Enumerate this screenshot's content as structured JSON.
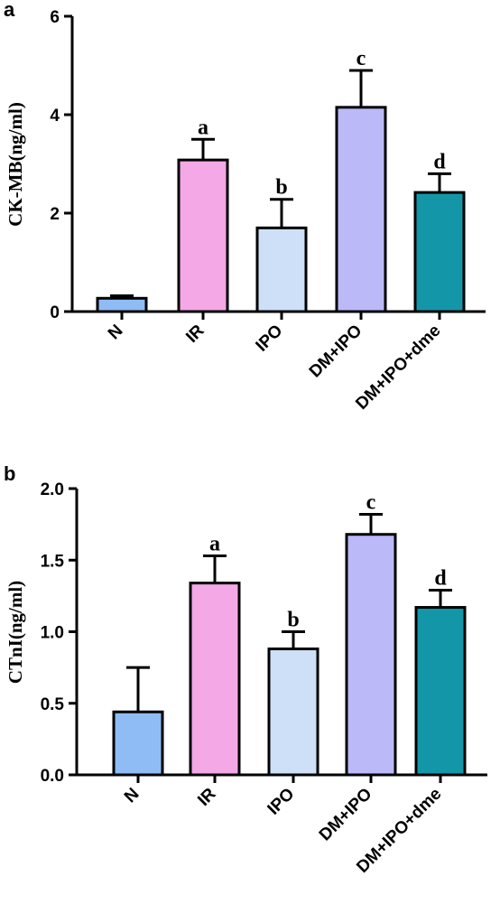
{
  "chart_data": [
    {
      "type": "bar",
      "panel_label": "a",
      "ylabel": "CK-MB(ng/ml)",
      "ylim": [
        0,
        6
      ],
      "yticks": [
        "0",
        "2",
        "4",
        "6"
      ],
      "categories": [
        "N",
        "IR",
        "IPO",
        "DM+IPO",
        "DM+IPO+dme"
      ],
      "values": [
        0.27,
        3.08,
        1.7,
        4.15,
        2.42
      ],
      "errors": [
        0.05,
        0.42,
        0.58,
        0.75,
        0.38
      ],
      "significance": [
        "",
        "a",
        "b",
        "c",
        "d"
      ],
      "colors": [
        "#8fbcf5",
        "#f4a8e6",
        "#cde0f8",
        "#bcb9f8",
        "#1397a8"
      ],
      "grid": false
    },
    {
      "type": "bar",
      "panel_label": "b",
      "ylabel": "CTnI(ng/ml)",
      "ylim": [
        0,
        2
      ],
      "yticks": [
        "0.0",
        "0.5",
        "1.0",
        "1.5",
        "2.0"
      ],
      "categories": [
        "N",
        "IR",
        "IPO",
        "DM+IPO",
        "DM+IPO+dme"
      ],
      "values": [
        0.44,
        1.34,
        0.88,
        1.68,
        1.17
      ],
      "errors": [
        0.31,
        0.19,
        0.12,
        0.14,
        0.12
      ],
      "significance": [
        "",
        "a",
        "b",
        "c",
        "d"
      ],
      "colors": [
        "#8fbcf5",
        "#f4a8e6",
        "#cde0f8",
        "#bcb9f8",
        "#1397a8"
      ],
      "grid": false
    }
  ]
}
